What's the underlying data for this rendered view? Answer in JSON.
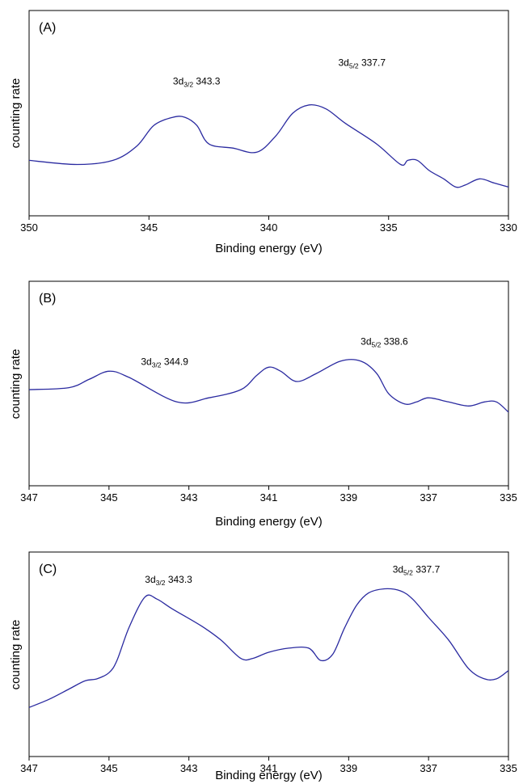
{
  "chart_data": [
    {
      "type": "line",
      "panel_label": "(A)",
      "ylabel": "counting rate",
      "xlabel": "Binding energy (eV)",
      "xlim": [
        350,
        330
      ],
      "x_ticks": [
        350,
        345,
        340,
        335,
        330
      ],
      "ylim": [
        0,
        100
      ],
      "annotations": [
        {
          "main": "3d",
          "sub": "3/2",
          "value": "343.3",
          "x": 344.0,
          "y": 64
        },
        {
          "main": "3d",
          "sub": "5/2",
          "value": "337.7",
          "x": 337.1,
          "y": 73
        }
      ],
      "series": [
        {
          "x": [
            350,
            348,
            346.5,
            345.5,
            344.8,
            344,
            343.5,
            343,
            342.5,
            341.5,
            340.5,
            339.7,
            339,
            338.3,
            337.6,
            336.8,
            335.5,
            334.5,
            334.2,
            333.8,
            333.3,
            332.7,
            332.2,
            331.8,
            331.2,
            330.6,
            330
          ],
          "y": [
            27,
            25,
            27,
            34,
            44,
            48,
            48,
            44,
            35,
            33,
            31,
            39,
            50,
            54,
            52,
            45,
            35,
            25,
            27,
            27,
            22,
            18,
            14,
            15,
            18,
            16,
            14
          ]
        }
      ]
    },
    {
      "type": "line",
      "panel_label": "(B)",
      "ylabel": "counting rate",
      "xlabel": "Binding energy (eV)",
      "xlim": [
        347,
        335
      ],
      "x_ticks": [
        347,
        345,
        343,
        341,
        339,
        337,
        335
      ],
      "ylim": [
        0,
        100
      ],
      "annotations": [
        {
          "main": "3d",
          "sub": "3/2",
          "value": "344.9",
          "x": 344.2,
          "y": 59
        },
        {
          "main": "3d",
          "sub": "5/2",
          "value": "338.6",
          "x": 338.7,
          "y": 69
        }
      ],
      "series": [
        {
          "x": [
            347,
            346,
            345.5,
            345,
            344.5,
            343.3,
            342.5,
            341.7,
            341.3,
            341,
            340.7,
            340.3,
            339.8,
            339.2,
            338.7,
            338.3,
            338,
            337.6,
            337.3,
            337,
            336.5,
            336,
            335.6,
            335.3,
            335
          ],
          "y": [
            47,
            48,
            52,
            56,
            53,
            41,
            43,
            47,
            54,
            58,
            56,
            51,
            55,
            61,
            61,
            55,
            45,
            40,
            41,
            43,
            41,
            39,
            41,
            41,
            36
          ]
        }
      ]
    },
    {
      "type": "line",
      "panel_label": "(C)",
      "ylabel": "counting rate",
      "xlabel": "Binding energy (eV)",
      "xlim": [
        347,
        335
      ],
      "x_ticks": [
        347,
        345,
        343,
        341,
        339,
        337,
        335
      ],
      "ylim": [
        0,
        100
      ],
      "annotations": [
        {
          "main": "3d",
          "sub": "3/2",
          "value": "343.3",
          "x": 344.1,
          "y": 85
        },
        {
          "main": "3d",
          "sub": "5/2",
          "value": "337.7",
          "x": 337.9,
          "y": 90
        }
      ],
      "series": [
        {
          "x": [
            347,
            346.5,
            346,
            345.6,
            345.3,
            345,
            344.8,
            344.5,
            344.1,
            343.8,
            343.4,
            342.7,
            342.2,
            341.7,
            341.4,
            341,
            340.5,
            340,
            339.7,
            339.4,
            339.1,
            338.8,
            338.5,
            338.1,
            337.7,
            337.4,
            337,
            336.5,
            336,
            335.6,
            335.3,
            335
          ],
          "y": [
            24,
            28,
            33,
            37,
            38,
            41,
            47,
            63,
            78,
            77,
            72,
            64,
            57,
            48,
            48,
            51,
            53,
            53,
            47,
            50,
            63,
            74,
            80,
            82,
            81,
            77,
            68,
            57,
            43,
            38,
            38,
            42
          ]
        }
      ]
    }
  ]
}
